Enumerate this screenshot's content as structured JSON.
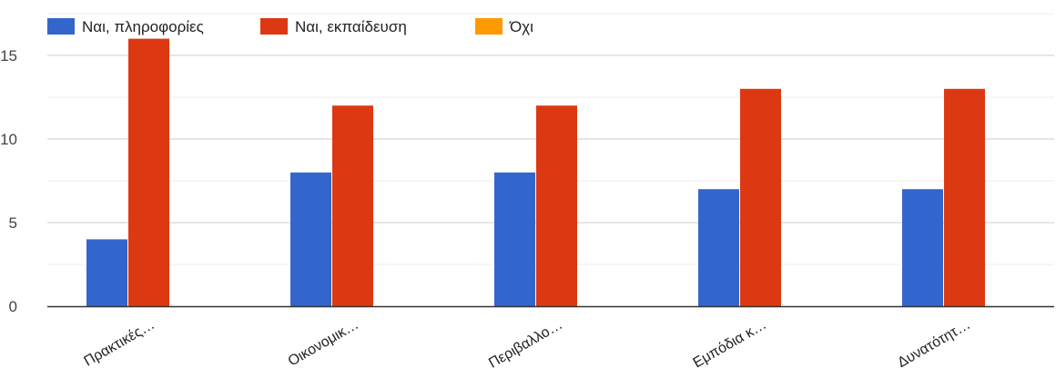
{
  "chart_data": {
    "type": "bar",
    "categories": [
      "Πρακτικές…",
      "Οικονομικ…",
      "Περιβαλλο…",
      "Εμπόδια κ…",
      "Δυνατότητ…"
    ],
    "series": [
      {
        "name": "Ναι, πληροφορίες",
        "color": "#3366cc",
        "values": [
          4,
          8,
          8,
          7,
          7
        ]
      },
      {
        "name": "Ναι, εκπαίδευση",
        "color": "#dc3912",
        "values": [
          16,
          12,
          12,
          13,
          13
        ]
      },
      {
        "name": "Όχι",
        "color": "#ff9900",
        "values": [
          0,
          0,
          0,
          0,
          0
        ]
      }
    ],
    "ylim": [
      0,
      16
    ],
    "yticks": [
      "0",
      "5",
      "10",
      "15"
    ],
    "grid": true,
    "legend_position": "top-left"
  }
}
